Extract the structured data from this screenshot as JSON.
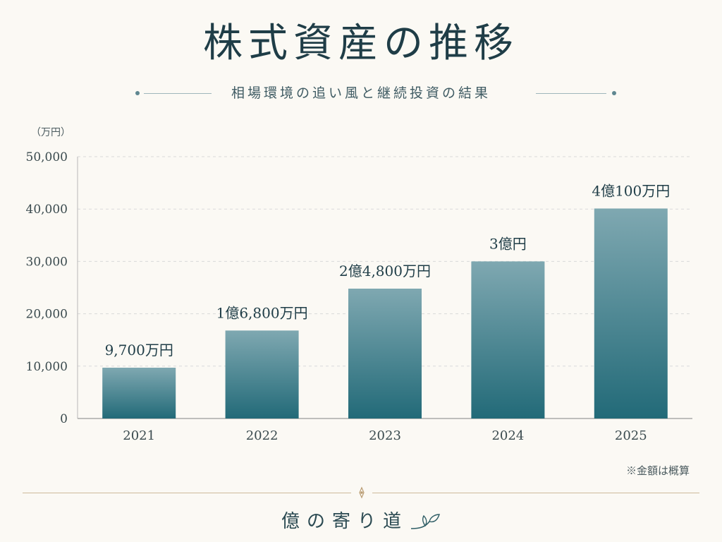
{
  "title": "株式資産の推移",
  "subtitle": "相場環境の追い風と継続投資の結果",
  "note": "※金額は概算",
  "footer": {
    "brand": "億の寄り道"
  },
  "colors": {
    "bar_top": "#7fa8b1",
    "bar_bottom": "#226a78",
    "grid": "#d9d9d9",
    "text": "#26414a",
    "accent": "#cdb99a"
  },
  "chart_data": {
    "type": "bar",
    "unit_label": "（万円）",
    "categories": [
      "2021",
      "2022",
      "2023",
      "2024",
      "2025"
    ],
    "values": [
      9700,
      16800,
      24800,
      30000,
      40100
    ],
    "data_labels": [
      "9,700万円",
      "1億6,800万円",
      "2億4,800万円",
      "3億円",
      "4億100万円"
    ],
    "ylim": [
      0,
      50000
    ],
    "yticks": [
      0,
      10000,
      20000,
      30000,
      40000,
      50000
    ],
    "ytick_labels": [
      "0",
      "10,000",
      "20,000",
      "30,000",
      "40,000",
      "50,000"
    ],
    "grid": true
  }
}
